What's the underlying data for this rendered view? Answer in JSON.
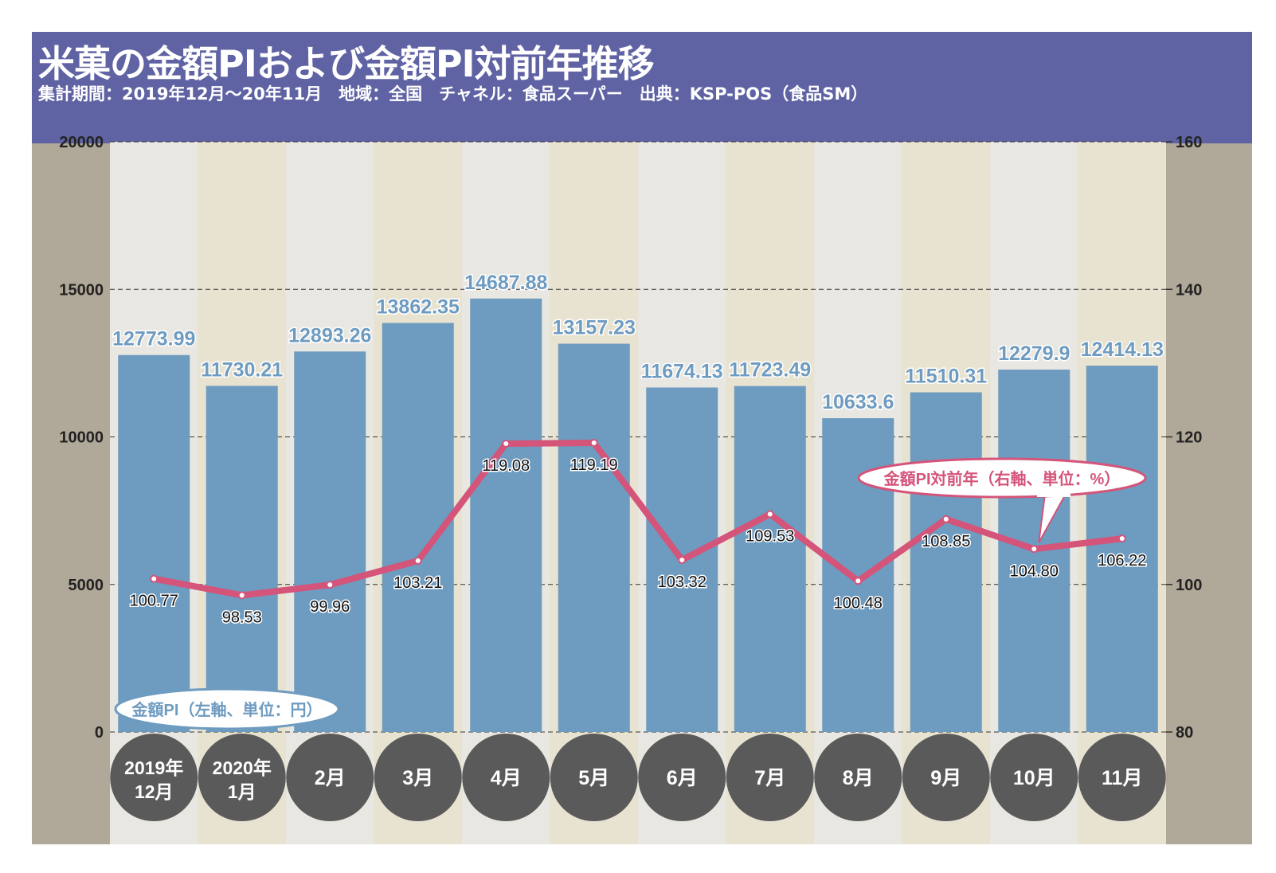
{
  "title": "米菓の金額PIおよび金額PI対前年推移",
  "subtitle": "集計期間：2019年12月～20年11月　地域：全国　チャネル：食品スーパー　出典：KSP-POS（食品SM）",
  "colors": {
    "header_bg": "#5f63a3",
    "frame_bg": "#b0a898",
    "column_light": "#e9e7e2",
    "column_cream": "#e8e3d0",
    "bar": "#6e9bc0",
    "bar_label": "#6e9bc0",
    "line": "#d4547a",
    "circle": "#5a5a5a"
  },
  "chart_data": {
    "type": "bar",
    "categories": [
      [
        "2019年",
        "12月"
      ],
      [
        "2020年",
        "1月"
      ],
      [
        "2月"
      ],
      [
        "3月"
      ],
      [
        "4月"
      ],
      [
        "5月"
      ],
      [
        "6月"
      ],
      [
        "7月"
      ],
      [
        "8月"
      ],
      [
        "9月"
      ],
      [
        "10月"
      ],
      [
        "11月"
      ]
    ],
    "series": [
      {
        "name": "金額PI（左軸、単位：円）",
        "type": "bar",
        "axis": "left",
        "values": [
          12773.99,
          11730.21,
          12893.26,
          13862.35,
          14687.88,
          13157.23,
          11674.13,
          11723.49,
          10633.6,
          11510.31,
          12279.9,
          12414.13
        ],
        "labels": [
          "12773.99",
          "11730.21",
          "12893.26",
          "13862.35",
          "14687.88",
          "13157.23",
          "11674.13",
          "11723.49",
          "10633.6",
          "11510.31",
          "12279.9",
          "12414.13"
        ]
      },
      {
        "name": "金額PI対前年（右軸、単位：%）",
        "type": "line",
        "axis": "right",
        "values": [
          100.77,
          98.53,
          99.96,
          103.21,
          119.08,
          119.19,
          103.32,
          109.53,
          100.48,
          108.85,
          104.8,
          106.22
        ],
        "labels": [
          "100.77",
          "98.53",
          "99.96",
          "103.21",
          "119.08",
          "119.19",
          "103.32",
          "109.53",
          "100.48",
          "108.85",
          "104.80",
          "106.22"
        ]
      }
    ],
    "y_left": {
      "min": 0,
      "max": 20000,
      "ticks": [
        "0",
        "5000",
        "10000",
        "15000",
        "20000"
      ]
    },
    "y_right": {
      "min": 80,
      "max": 160,
      "ticks": [
        "80",
        "100",
        "120",
        "140",
        "160"
      ]
    },
    "grid": "dashed"
  }
}
